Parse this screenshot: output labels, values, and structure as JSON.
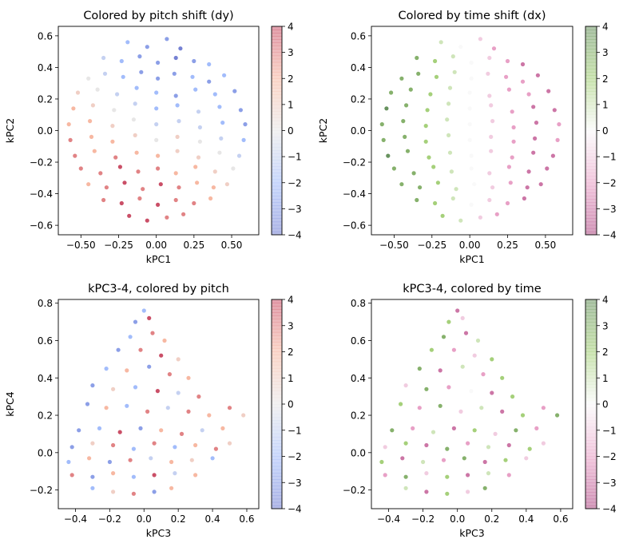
{
  "chart_data": {
    "type": "scatter",
    "panels": [
      {
        "title": "Colored by pitch shift (dy)",
        "xlabel": "kPC1",
        "ylabel": "kPC2",
        "dataset": "pc12",
        "color_by": "dy",
        "cmap": "coolwarm",
        "xlim": [
          -0.65,
          0.68
        ],
        "ylim": [
          -0.66,
          0.66
        ],
        "xticks": [
          -0.5,
          -0.25,
          0,
          0.25,
          0.5
        ],
        "xtick_labels": [
          "−0.50",
          "−0.25",
          "0.00",
          "0.25",
          "0.50"
        ],
        "yticks": [
          -0.6,
          -0.4,
          -0.2,
          0,
          0.2,
          0.4,
          0.6
        ],
        "ytick_labels": [
          "−0.6",
          "−0.4",
          "−0.2",
          "0.0",
          "0.2",
          "0.4",
          "0.6"
        ],
        "colorbar": {
          "lim": [
            -4,
            4
          ],
          "ticks": [
            -4,
            -3,
            -2,
            -1,
            0,
            1,
            2,
            3,
            4
          ],
          "tick_labels": [
            "−4",
            "−3",
            "−2",
            "−1",
            "0",
            "1",
            "2",
            "3",
            "4"
          ]
        }
      },
      {
        "title": "Colored by time shift (dx)",
        "xlabel": "kPC1",
        "ylabel": "kPC2",
        "dataset": "pc12",
        "color_by": "dx",
        "cmap": "PiYG",
        "xlim": [
          -0.65,
          0.68
        ],
        "ylim": [
          -0.66,
          0.66
        ],
        "xticks": [
          -0.5,
          -0.25,
          0,
          0.25,
          0.5
        ],
        "xtick_labels": [
          "−0.50",
          "−0.25",
          "0.00",
          "0.25",
          "0.50"
        ],
        "yticks": [
          -0.6,
          -0.4,
          -0.2,
          0,
          0.2,
          0.4,
          0.6
        ],
        "ytick_labels": [
          "−0.6",
          "−0.4",
          "−0.2",
          "0.0",
          "0.2",
          "0.4",
          "0.6"
        ],
        "colorbar": {
          "lim": [
            -4,
            4
          ],
          "ticks": [
            -4,
            -3,
            -2,
            -1,
            0,
            1,
            2,
            3,
            4
          ],
          "tick_labels": [
            "−4",
            "−3",
            "−2",
            "−1",
            "0",
            "1",
            "2",
            "3",
            "4"
          ]
        }
      },
      {
        "title": "kPC3-4, colored by pitch",
        "xlabel": "kPC3",
        "ylabel": "kPC4",
        "dataset": "pc34",
        "color_by": "dy",
        "cmap": "coolwarm",
        "xlim": [
          -0.5,
          0.67
        ],
        "ylim": [
          -0.3,
          0.82
        ],
        "xticks": [
          -0.4,
          -0.2,
          0,
          0.2,
          0.4,
          0.6
        ],
        "xtick_labels": [
          "−0.4",
          "−0.2",
          "0.0",
          "0.2",
          "0.4",
          "0.6"
        ],
        "yticks": [
          -0.2,
          0,
          0.2,
          0.4,
          0.6,
          0.8
        ],
        "ytick_labels": [
          "−0.2",
          "0.0",
          "0.2",
          "0.4",
          "0.6",
          "0.8"
        ],
        "colorbar": {
          "lim": [
            -4,
            4
          ],
          "ticks": [
            -4,
            -3,
            -2,
            -1,
            0,
            1,
            2,
            3,
            4
          ],
          "tick_labels": [
            "−4",
            "−3",
            "−2",
            "−1",
            "0",
            "1",
            "2",
            "3",
            "4"
          ]
        }
      },
      {
        "title": "kPC3-4, colored by time",
        "xlabel": "kPC3",
        "ylabel": "",
        "dataset": "pc34",
        "color_by": "dx",
        "cmap": "PiYG",
        "xlim": [
          -0.5,
          0.67
        ],
        "ylim": [
          -0.3,
          0.82
        ],
        "xticks": [
          -0.4,
          -0.2,
          0,
          0.2,
          0.4,
          0.6
        ],
        "xtick_labels": [
          "−0.4",
          "−0.2",
          "0.0",
          "0.2",
          "0.4",
          "0.6"
        ],
        "yticks": [
          -0.2,
          0,
          0.2,
          0.4,
          0.6,
          0.8
        ],
        "ytick_labels": [
          "−0.2",
          "0.0",
          "0.2",
          "0.4",
          "0.6",
          "0.8"
        ],
        "colorbar": {
          "lim": [
            -4,
            4
          ],
          "ticks": [
            -4,
            -3,
            -2,
            -1,
            0,
            1,
            2,
            3,
            4
          ],
          "tick_labels": [
            "−4",
            "−3",
            "−2",
            "−1",
            "0",
            "1",
            "2",
            "3",
            "4"
          ]
        }
      }
    ],
    "colormaps": {
      "coolwarm": [
        "#3b4cc0",
        "#7b9ff9",
        "#dddcdc",
        "#f49a7b",
        "#b40426"
      ],
      "PiYG": [
        "#8e0152",
        "#de77ae",
        "#f7f7f7",
        "#7fbc41",
        "#276419"
      ]
    },
    "point_fields": [
      "x",
      "y",
      "dy",
      "dx"
    ],
    "datasets": {
      "pc12": [
        [
          -0.19,
          0.56,
          -2,
          1
        ],
        [
          -0.06,
          0.53,
          -3,
          0
        ],
        [
          0.07,
          0.58,
          -3,
          -1
        ],
        [
          0.16,
          0.52,
          -4,
          -2
        ],
        [
          -0.35,
          0.46,
          -1,
          3
        ],
        [
          -0.23,
          0.44,
          -2,
          2
        ],
        [
          -0.11,
          0.47,
          -3,
          1
        ],
        [
          0.01,
          0.43,
          -3,
          0
        ],
        [
          0.13,
          0.46,
          -4,
          -1
        ],
        [
          0.25,
          0.44,
          -3,
          -2
        ],
        [
          0.35,
          0.42,
          -2,
          -3
        ],
        [
          -0.45,
          0.33,
          0,
          3
        ],
        [
          -0.34,
          0.36,
          -1,
          3
        ],
        [
          -0.22,
          0.34,
          -2,
          2
        ],
        [
          -0.1,
          0.37,
          -3,
          1
        ],
        [
          0.01,
          0.33,
          -3,
          0
        ],
        [
          0.12,
          0.36,
          -3,
          -1
        ],
        [
          0.24,
          0.34,
          -2,
          -2
        ],
        [
          0.35,
          0.31,
          -3,
          -2
        ],
        [
          0.45,
          0.35,
          -2,
          -3
        ],
        [
          -0.52,
          0.24,
          1,
          3
        ],
        [
          -0.39,
          0.26,
          0,
          3
        ],
        [
          -0.26,
          0.23,
          -1,
          2
        ],
        [
          -0.13,
          0.27,
          -2,
          1
        ],
        [
          0.0,
          0.24,
          -2,
          0
        ],
        [
          0.13,
          0.22,
          -3,
          -1
        ],
        [
          0.26,
          0.26,
          -2,
          -2
        ],
        [
          0.39,
          0.23,
          -2,
          -2
        ],
        [
          0.52,
          0.25,
          -3,
          -3
        ],
        [
          -0.55,
          0.14,
          2,
          4
        ],
        [
          -0.42,
          0.16,
          1,
          3
        ],
        [
          -0.28,
          0.13,
          0,
          2
        ],
        [
          -0.14,
          0.17,
          -1,
          1
        ],
        [
          0.0,
          0.14,
          -2,
          0
        ],
        [
          0.14,
          0.16,
          -2,
          -1
        ],
        [
          0.28,
          0.12,
          -1,
          -2
        ],
        [
          0.42,
          0.15,
          -2,
          -3
        ],
        [
          0.56,
          0.13,
          -3,
          -3
        ],
        [
          -0.58,
          0.04,
          2,
          3
        ],
        [
          -0.44,
          0.06,
          2,
          3
        ],
        [
          -0.29,
          0.03,
          1,
          2
        ],
        [
          -0.15,
          0.07,
          0,
          1
        ],
        [
          0.0,
          0.04,
          -1,
          0
        ],
        [
          0.15,
          0.06,
          -1,
          -1
        ],
        [
          0.29,
          0.02,
          -1,
          -2
        ],
        [
          0.44,
          0.05,
          -2,
          -3
        ],
        [
          0.59,
          0.04,
          -3,
          -2
        ],
        [
          -0.57,
          -0.06,
          3,
          3
        ],
        [
          -0.43,
          -0.04,
          2,
          3
        ],
        [
          -0.29,
          -0.07,
          2,
          2
        ],
        [
          -0.14,
          -0.03,
          1,
          1
        ],
        [
          0.0,
          -0.06,
          0,
          0
        ],
        [
          0.14,
          -0.04,
          1,
          -1
        ],
        [
          0.29,
          -0.07,
          0,
          -2
        ],
        [
          0.43,
          -0.05,
          -1,
          -3
        ],
        [
          0.58,
          -0.06,
          -2,
          -2
        ],
        [
          -0.54,
          -0.16,
          3,
          4
        ],
        [
          -0.41,
          -0.13,
          2,
          3
        ],
        [
          -0.27,
          -0.17,
          3,
          2
        ],
        [
          -0.13,
          -0.14,
          2,
          1
        ],
        [
          0.01,
          -0.16,
          2,
          0
        ],
        [
          0.14,
          -0.13,
          1,
          -1
        ],
        [
          0.28,
          -0.17,
          1,
          -2
        ],
        [
          0.42,
          -0.14,
          0,
          -3
        ],
        [
          0.55,
          -0.16,
          -1,
          -3
        ],
        [
          -0.5,
          -0.24,
          3,
          3
        ],
        [
          -0.37,
          -0.27,
          3,
          3
        ],
        [
          -0.24,
          -0.23,
          4,
          2
        ],
        [
          -0.12,
          -0.26,
          3,
          1
        ],
        [
          0.01,
          -0.24,
          3,
          0
        ],
        [
          0.13,
          -0.27,
          2,
          -1
        ],
        [
          0.26,
          -0.23,
          2,
          -2
        ],
        [
          0.39,
          -0.26,
          1,
          -3
        ],
        [
          0.51,
          -0.24,
          0,
          -3
        ],
        [
          -0.45,
          -0.34,
          2,
          3
        ],
        [
          -0.33,
          -0.36,
          3,
          3
        ],
        [
          -0.21,
          -0.33,
          4,
          2
        ],
        [
          -0.09,
          -0.37,
          3,
          1
        ],
        [
          0.03,
          -0.34,
          4,
          0
        ],
        [
          0.15,
          -0.36,
          3,
          -1
        ],
        [
          0.27,
          -0.33,
          2,
          -2
        ],
        [
          0.38,
          -0.36,
          2,
          -3
        ],
        [
          0.47,
          -0.34,
          1,
          -3
        ],
        [
          -0.35,
          -0.44,
          3,
          3
        ],
        [
          -0.23,
          -0.46,
          4,
          2
        ],
        [
          -0.11,
          -0.43,
          3,
          1
        ],
        [
          0.01,
          -0.47,
          4,
          0
        ],
        [
          0.13,
          -0.44,
          3,
          -1
        ],
        [
          0.25,
          -0.46,
          3,
          -2
        ],
        [
          0.36,
          -0.43,
          2,
          -3
        ],
        [
          -0.18,
          -0.54,
          4,
          2
        ],
        [
          -0.06,
          -0.57,
          4,
          1
        ],
        [
          0.07,
          -0.55,
          3,
          -1
        ],
        [
          0.18,
          -0.53,
          3,
          -2
        ]
      ],
      "pc34": [
        [
          0.0,
          0.76,
          -2,
          -3
        ],
        [
          -0.05,
          0.7,
          -3,
          2
        ],
        [
          0.03,
          0.72,
          4,
          -1
        ],
        [
          -0.08,
          0.62,
          -2,
          3
        ],
        [
          0.05,
          0.64,
          3,
          -3
        ],
        [
          0.12,
          0.6,
          2,
          1
        ],
        [
          -0.15,
          0.55,
          -3,
          2
        ],
        [
          -0.02,
          0.55,
          3,
          -2
        ],
        [
          0.1,
          0.52,
          4,
          -1
        ],
        [
          0.2,
          0.5,
          1,
          2
        ],
        [
          -0.22,
          0.45,
          -2,
          3
        ],
        [
          -0.1,
          0.44,
          2,
          -3
        ],
        [
          0.03,
          0.46,
          -3,
          1
        ],
        [
          0.15,
          0.42,
          3,
          -2
        ],
        [
          0.26,
          0.4,
          2,
          2
        ],
        [
          -0.3,
          0.36,
          -3,
          -1
        ],
        [
          -0.18,
          0.34,
          1,
          3
        ],
        [
          -0.05,
          0.35,
          -2,
          -2
        ],
        [
          0.08,
          0.33,
          4,
          0
        ],
        [
          0.2,
          0.32,
          -1,
          -3
        ],
        [
          0.32,
          0.3,
          3,
          2
        ],
        [
          -0.33,
          0.26,
          -3,
          2
        ],
        [
          -0.22,
          0.24,
          2,
          -2
        ],
        [
          -0.1,
          0.25,
          -2,
          3
        ],
        [
          0.02,
          0.22,
          3,
          -1
        ],
        [
          0.14,
          0.24,
          -1,
          1
        ],
        [
          0.26,
          0.22,
          3,
          -3
        ],
        [
          0.38,
          0.2,
          2,
          2
        ],
        [
          0.5,
          0.24,
          3,
          -2
        ],
        [
          0.58,
          0.2,
          1,
          3
        ],
        [
          -0.38,
          0.12,
          -3,
          3
        ],
        [
          -0.26,
          0.13,
          -2,
          -2
        ],
        [
          -0.14,
          0.11,
          4,
          1
        ],
        [
          -0.02,
          0.13,
          -3,
          -3
        ],
        [
          0.1,
          0.12,
          2,
          2
        ],
        [
          0.22,
          0.1,
          3,
          -1
        ],
        [
          0.34,
          0.12,
          -1,
          3
        ],
        [
          0.46,
          0.13,
          2,
          -2
        ],
        [
          -0.42,
          0.03,
          -3,
          -1
        ],
        [
          -0.3,
          0.05,
          1,
          2
        ],
        [
          -0.18,
          0.04,
          3,
          -3
        ],
        [
          -0.06,
          0.02,
          -2,
          3
        ],
        [
          0.06,
          0.05,
          3,
          -2
        ],
        [
          0.18,
          0.03,
          -2,
          1
        ],
        [
          0.3,
          0.04,
          2,
          -3
        ],
        [
          0.42,
          0.02,
          3,
          2
        ],
        [
          0.5,
          0.05,
          1,
          -1
        ],
        [
          -0.44,
          -0.05,
          -2,
          2
        ],
        [
          -0.32,
          -0.03,
          2,
          -3
        ],
        [
          -0.2,
          -0.05,
          -3,
          1
        ],
        [
          -0.08,
          -0.04,
          3,
          -2
        ],
        [
          0.04,
          -0.03,
          -1,
          3
        ],
        [
          0.16,
          -0.05,
          2,
          -3
        ],
        [
          0.28,
          -0.04,
          1,
          2
        ],
        [
          0.4,
          -0.03,
          -2,
          -1
        ],
        [
          -0.42,
          -0.12,
          3,
          -2
        ],
        [
          -0.3,
          -0.13,
          -3,
          3
        ],
        [
          -0.18,
          -0.11,
          2,
          -1
        ],
        [
          -0.06,
          -0.13,
          -2,
          2
        ],
        [
          0.06,
          -0.12,
          4,
          -3
        ],
        [
          0.18,
          -0.11,
          -1,
          1
        ],
        [
          0.3,
          -0.12,
          2,
          -2
        ],
        [
          -0.3,
          -0.19,
          -2,
          1
        ],
        [
          -0.18,
          -0.21,
          1,
          -3
        ],
        [
          -0.06,
          -0.22,
          3,
          2
        ],
        [
          0.06,
          -0.21,
          -3,
          -1
        ],
        [
          0.16,
          -0.19,
          2,
          3
        ]
      ]
    }
  }
}
